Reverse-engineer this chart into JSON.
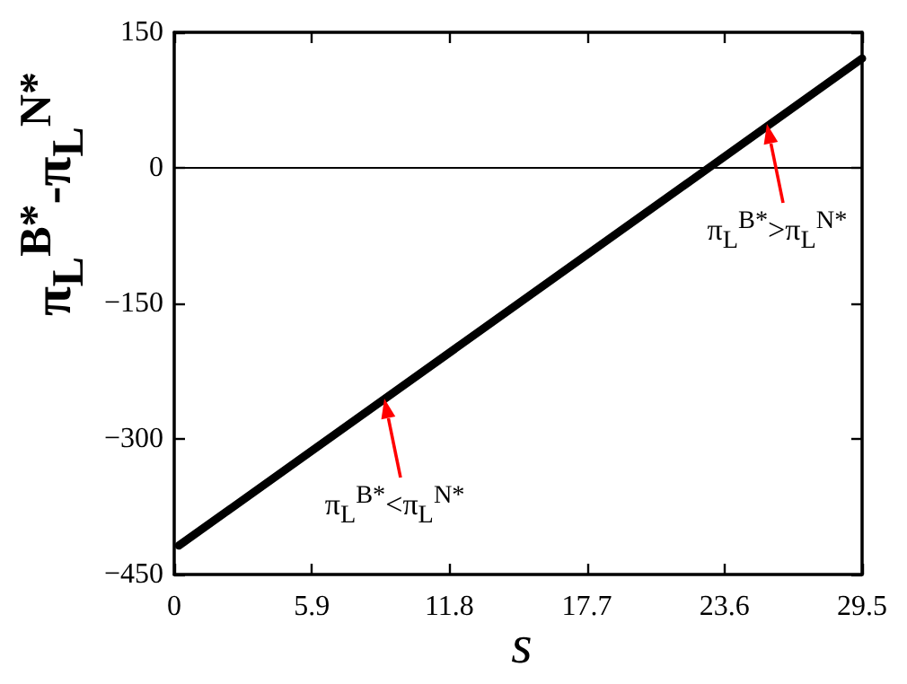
{
  "chart_data": {
    "type": "line",
    "xlabel": "s",
    "ylabel": "π$_{L}$$^{B*}$-π$_{L}$$^{N*}$",
    "x": [
      0.2,
      29.5
    ],
    "series": [
      {
        "color": "#000000",
        "values": [
          -418,
          121
        ]
      }
    ],
    "xlim": [
      0,
      29.5
    ],
    "xticks": [
      0,
      5.9,
      11.8,
      17.7,
      23.6,
      29.5
    ],
    "ylim": [
      -450,
      150
    ],
    "yticks": [
      -450,
      -300,
      -150,
      0,
      150
    ],
    "ref_lines": [
      {
        "axis": "y",
        "value": 0,
        "color": "#000000"
      }
    ],
    "annotations": [
      {
        "text": "π$_{L}$$^{B*}$>π$_{L}$$^{N*}$",
        "x": 25.4,
        "y": 49
      },
      {
        "text": "π$_{L}$$^{B*}$<π$_{L}$$^{N*}$",
        "x": 9.0,
        "y": -256
      }
    ],
    "marker": "none",
    "line_style": "solid"
  }
}
